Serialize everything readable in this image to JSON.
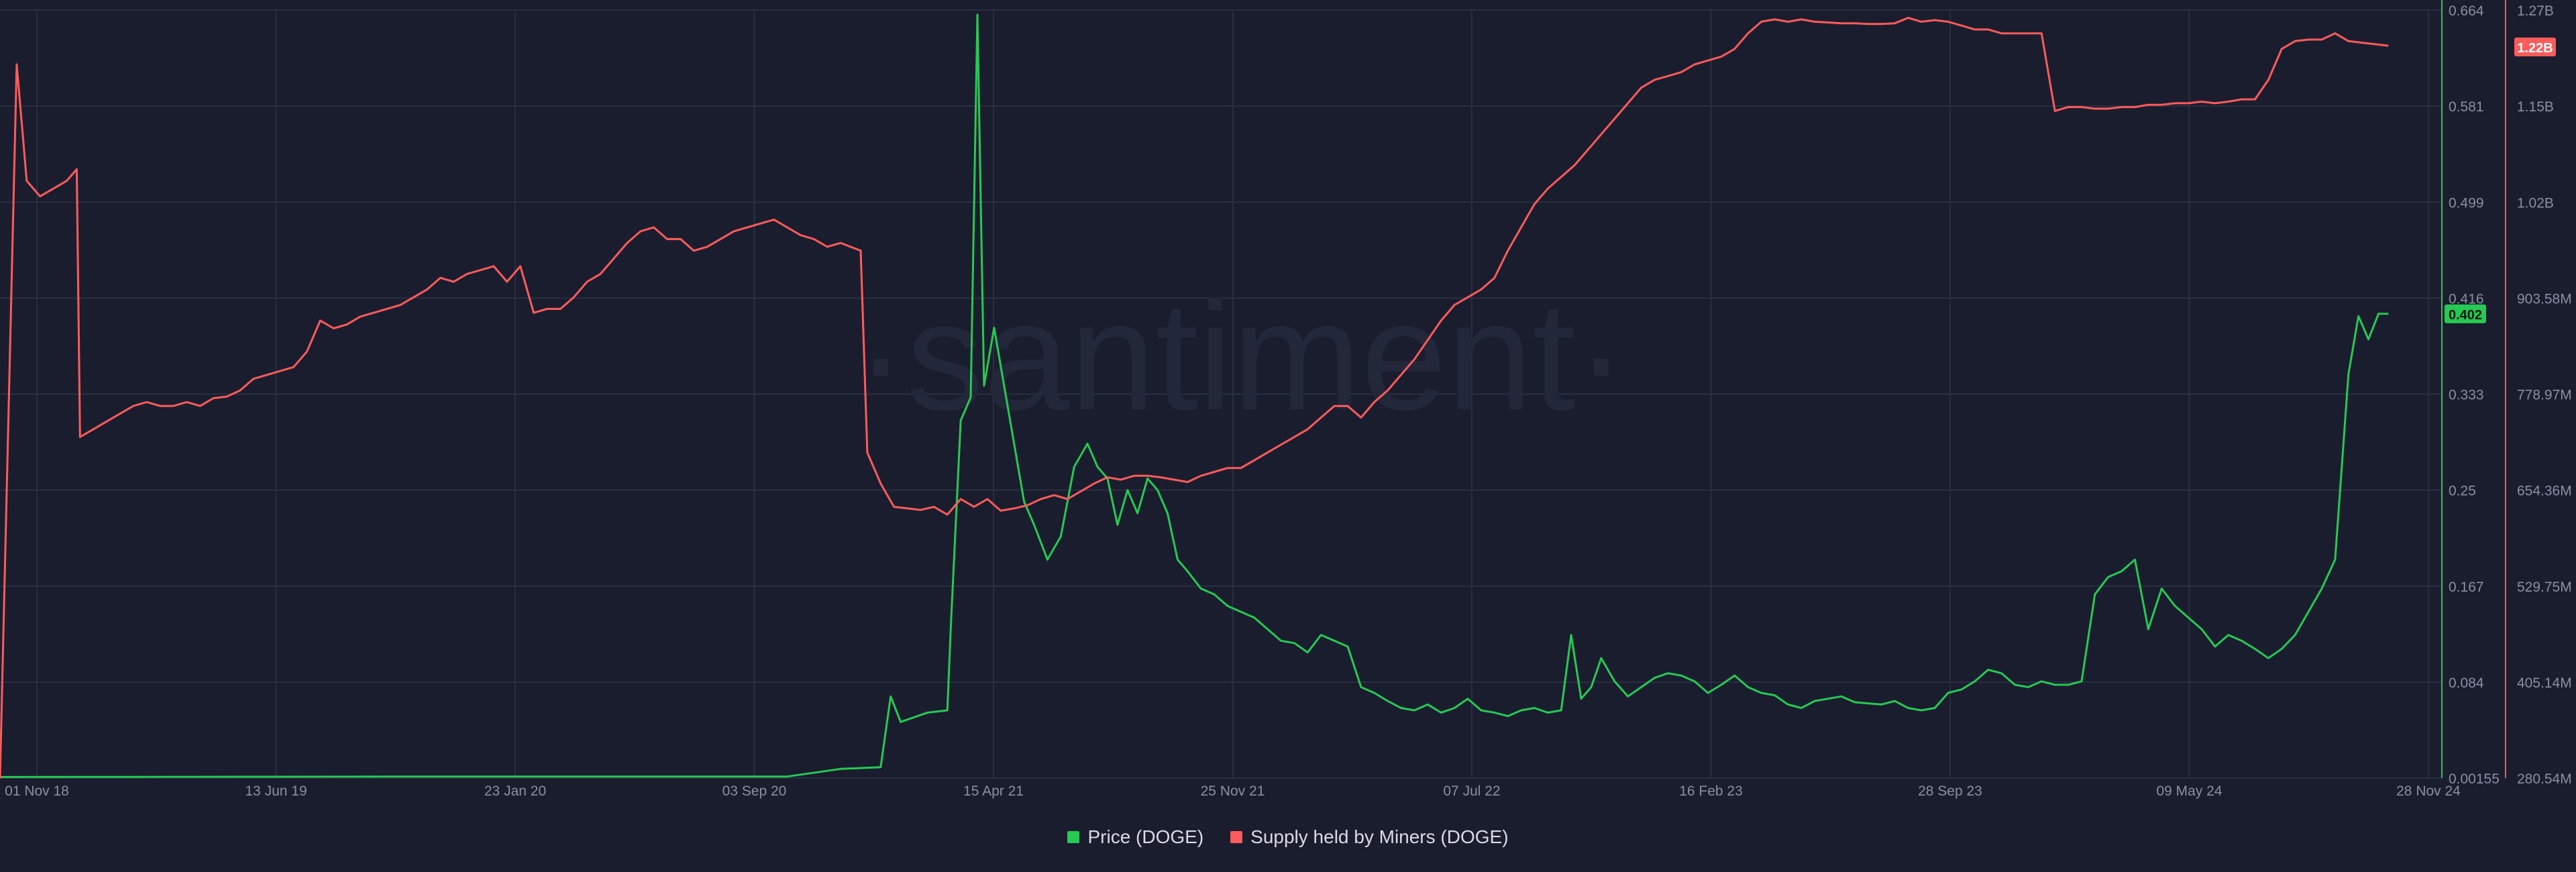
{
  "watermark": "santiment",
  "colors": {
    "background": "#1a1d2e",
    "grid": "#2a2e42",
    "axis_text": "#8a8fa3",
    "price": "#26c953",
    "supply": "#ff5b5b"
  },
  "chart_data": {
    "type": "line",
    "x_ticks": [
      "01 Nov 18",
      "13 Jun 19",
      "23 Jan 20",
      "03 Sep 20",
      "15 Apr 21",
      "25 Nov 21",
      "07 Jul 22",
      "16 Feb 23",
      "28 Sep 23",
      "09 May 24",
      "28 Nov 24"
    ],
    "price_axis": {
      "ticks": [
        "0.664",
        "0.581",
        "0.499",
        "0.416",
        "0.333",
        "0.25",
        "0.167",
        "0.084",
        "0.00155"
      ],
      "range": [
        0.00155,
        0.664
      ],
      "current_label": "0.402"
    },
    "supply_axis": {
      "ticks": [
        "1.27B",
        "1.15B",
        "1.02B",
        "903.58M",
        "778.97M",
        "654.36M",
        "529.75M",
        "405.14M",
        "280.54M"
      ],
      "range": [
        280.54,
        1270
      ],
      "current_label": "1.22B"
    },
    "series": [
      {
        "name": "Price (DOGE)",
        "color": "#26c953",
        "axis": "price",
        "points": [
          [
            0,
            0.0025
          ],
          [
            200,
            0.0026
          ],
          [
            400,
            0.0027
          ],
          [
            600,
            0.0028
          ],
          [
            800,
            0.0028
          ],
          [
            980,
            0.0029
          ],
          [
            1180,
            0.0029
          ],
          [
            1260,
            0.0095
          ],
          [
            1320,
            0.011
          ],
          [
            1335,
            0.072
          ],
          [
            1350,
            0.05
          ],
          [
            1390,
            0.058
          ],
          [
            1420,
            0.06
          ],
          [
            1425,
            0.13
          ],
          [
            1440,
            0.31
          ],
          [
            1455,
            0.33
          ],
          [
            1465,
            0.66
          ],
          [
            1475,
            0.34
          ],
          [
            1490,
            0.39
          ],
          [
            1505,
            0.34
          ],
          [
            1520,
            0.29
          ],
          [
            1535,
            0.24
          ],
          [
            1550,
            0.22
          ],
          [
            1570,
            0.19
          ],
          [
            1590,
            0.21
          ],
          [
            1610,
            0.27
          ],
          [
            1630,
            0.29
          ],
          [
            1645,
            0.27
          ],
          [
            1660,
            0.26
          ],
          [
            1675,
            0.22
          ],
          [
            1690,
            0.25
          ],
          [
            1705,
            0.23
          ],
          [
            1720,
            0.26
          ],
          [
            1735,
            0.25
          ],
          [
            1750,
            0.23
          ],
          [
            1765,
            0.19
          ],
          [
            1780,
            0.18
          ],
          [
            1800,
            0.165
          ],
          [
            1820,
            0.16
          ],
          [
            1840,
            0.15
          ],
          [
            1860,
            0.145
          ],
          [
            1880,
            0.14
          ],
          [
            1900,
            0.13
          ],
          [
            1920,
            0.12
          ],
          [
            1940,
            0.118
          ],
          [
            1960,
            0.11
          ],
          [
            1980,
            0.125
          ],
          [
            2000,
            0.12
          ],
          [
            2020,
            0.115
          ],
          [
            2040,
            0.08
          ],
          [
            2060,
            0.075
          ],
          [
            2080,
            0.068
          ],
          [
            2100,
            0.062
          ],
          [
            2120,
            0.06
          ],
          [
            2140,
            0.065
          ],
          [
            2160,
            0.058
          ],
          [
            2180,
            0.062
          ],
          [
            2200,
            0.07
          ],
          [
            2220,
            0.06
          ],
          [
            2240,
            0.058
          ],
          [
            2260,
            0.055
          ],
          [
            2280,
            0.06
          ],
          [
            2300,
            0.062
          ],
          [
            2320,
            0.058
          ],
          [
            2340,
            0.06
          ],
          [
            2355,
            0.125
          ],
          [
            2370,
            0.07
          ],
          [
            2385,
            0.08
          ],
          [
            2400,
            0.105
          ],
          [
            2420,
            0.085
          ],
          [
            2440,
            0.072
          ],
          [
            2460,
            0.08
          ],
          [
            2480,
            0.088
          ],
          [
            2500,
            0.092
          ],
          [
            2520,
            0.09
          ],
          [
            2540,
            0.085
          ],
          [
            2560,
            0.075
          ],
          [
            2580,
            0.082
          ],
          [
            2600,
            0.09
          ],
          [
            2620,
            0.08
          ],
          [
            2640,
            0.075
          ],
          [
            2660,
            0.073
          ],
          [
            2680,
            0.065
          ],
          [
            2700,
            0.062
          ],
          [
            2720,
            0.068
          ],
          [
            2740,
            0.07
          ],
          [
            2760,
            0.072
          ],
          [
            2780,
            0.067
          ],
          [
            2800,
            0.066
          ],
          [
            2820,
            0.065
          ],
          [
            2840,
            0.068
          ],
          [
            2860,
            0.062
          ],
          [
            2880,
            0.06
          ],
          [
            2900,
            0.062
          ],
          [
            2920,
            0.075
          ],
          [
            2940,
            0.078
          ],
          [
            2960,
            0.085
          ],
          [
            2980,
            0.095
          ],
          [
            3000,
            0.092
          ],
          [
            3020,
            0.082
          ],
          [
            3040,
            0.08
          ],
          [
            3060,
            0.085
          ],
          [
            3080,
            0.082
          ],
          [
            3100,
            0.082
          ],
          [
            3120,
            0.085
          ],
          [
            3140,
            0.16
          ],
          [
            3160,
            0.175
          ],
          [
            3180,
            0.18
          ],
          [
            3200,
            0.19
          ],
          [
            3220,
            0.13
          ],
          [
            3240,
            0.165
          ],
          [
            3260,
            0.15
          ],
          [
            3280,
            0.14
          ],
          [
            3300,
            0.13
          ],
          [
            3320,
            0.115
          ],
          [
            3340,
            0.125
          ],
          [
            3360,
            0.12
          ],
          [
            3380,
            0.113
          ],
          [
            3400,
            0.105
          ],
          [
            3420,
            0.113
          ],
          [
            3440,
            0.125
          ],
          [
            3460,
            0.145
          ],
          [
            3480,
            0.165
          ],
          [
            3500,
            0.19
          ],
          [
            3520,
            0.35
          ],
          [
            3535,
            0.4
          ],
          [
            3550,
            0.38
          ],
          [
            3565,
            0.402
          ],
          [
            3580,
            0.402
          ]
        ]
      },
      {
        "name": "Supply held by Miners (DOGE)",
        "color": "#ff5b5b",
        "axis": "supply",
        "points": [
          [
            0,
            280
          ],
          [
            25,
            1200
          ],
          [
            40,
            1050
          ],
          [
            60,
            1030
          ],
          [
            80,
            1040
          ],
          [
            100,
            1050
          ],
          [
            115,
            1065
          ],
          [
            120,
            720
          ],
          [
            140,
            730
          ],
          [
            160,
            740
          ],
          [
            180,
            750
          ],
          [
            200,
            760
          ],
          [
            220,
            765
          ],
          [
            240,
            760
          ],
          [
            260,
            760
          ],
          [
            280,
            765
          ],
          [
            300,
            760
          ],
          [
            320,
            770
          ],
          [
            340,
            772
          ],
          [
            360,
            780
          ],
          [
            380,
            795
          ],
          [
            400,
            800
          ],
          [
            420,
            805
          ],
          [
            440,
            810
          ],
          [
            460,
            830
          ],
          [
            480,
            870
          ],
          [
            500,
            860
          ],
          [
            520,
            865
          ],
          [
            540,
            875
          ],
          [
            560,
            880
          ],
          [
            580,
            885
          ],
          [
            600,
            890
          ],
          [
            620,
            900
          ],
          [
            640,
            910
          ],
          [
            660,
            925
          ],
          [
            680,
            920
          ],
          [
            700,
            930
          ],
          [
            720,
            935
          ],
          [
            740,
            940
          ],
          [
            760,
            920
          ],
          [
            780,
            940
          ],
          [
            800,
            880
          ],
          [
            820,
            885
          ],
          [
            840,
            885
          ],
          [
            860,
            900
          ],
          [
            880,
            920
          ],
          [
            900,
            930
          ],
          [
            920,
            950
          ],
          [
            940,
            970
          ],
          [
            960,
            985
          ],
          [
            980,
            990
          ],
          [
            1000,
            975
          ],
          [
            1020,
            975
          ],
          [
            1040,
            960
          ],
          [
            1060,
            965
          ],
          [
            1080,
            975
          ],
          [
            1100,
            985
          ],
          [
            1120,
            990
          ],
          [
            1140,
            995
          ],
          [
            1160,
            1000
          ],
          [
            1180,
            990
          ],
          [
            1200,
            980
          ],
          [
            1220,
            975
          ],
          [
            1240,
            965
          ],
          [
            1260,
            970
          ],
          [
            1290,
            960
          ],
          [
            1300,
            700
          ],
          [
            1320,
            660
          ],
          [
            1340,
            630
          ],
          [
            1360,
            628
          ],
          [
            1380,
            626
          ],
          [
            1400,
            630
          ],
          [
            1420,
            620
          ],
          [
            1440,
            640
          ],
          [
            1460,
            630
          ],
          [
            1480,
            640
          ],
          [
            1500,
            625
          ],
          [
            1520,
            628
          ],
          [
            1540,
            632
          ],
          [
            1560,
            640
          ],
          [
            1580,
            645
          ],
          [
            1600,
            640
          ],
          [
            1620,
            650
          ],
          [
            1640,
            660
          ],
          [
            1660,
            668
          ],
          [
            1680,
            665
          ],
          [
            1700,
            670
          ],
          [
            1720,
            670
          ],
          [
            1740,
            668
          ],
          [
            1760,
            665
          ],
          [
            1780,
            662
          ],
          [
            1800,
            670
          ],
          [
            1820,
            675
          ],
          [
            1840,
            680
          ],
          [
            1860,
            680
          ],
          [
            1880,
            690
          ],
          [
            1900,
            700
          ],
          [
            1920,
            710
          ],
          [
            1940,
            720
          ],
          [
            1960,
            730
          ],
          [
            1980,
            745
          ],
          [
            2000,
            760
          ],
          [
            2020,
            760
          ],
          [
            2040,
            745
          ],
          [
            2060,
            765
          ],
          [
            2080,
            780
          ],
          [
            2100,
            800
          ],
          [
            2120,
            820
          ],
          [
            2140,
            845
          ],
          [
            2160,
            870
          ],
          [
            2180,
            890
          ],
          [
            2200,
            900
          ],
          [
            2220,
            910
          ],
          [
            2240,
            925
          ],
          [
            2260,
            960
          ],
          [
            2280,
            990
          ],
          [
            2300,
            1020
          ],
          [
            2320,
            1040
          ],
          [
            2340,
            1055
          ],
          [
            2360,
            1070
          ],
          [
            2380,
            1090
          ],
          [
            2400,
            1110
          ],
          [
            2420,
            1130
          ],
          [
            2440,
            1150
          ],
          [
            2460,
            1170
          ],
          [
            2480,
            1180
          ],
          [
            2500,
            1185
          ],
          [
            2520,
            1190
          ],
          [
            2540,
            1200
          ],
          [
            2560,
            1205
          ],
          [
            2580,
            1210
          ],
          [
            2600,
            1220
          ],
          [
            2620,
            1240
          ],
          [
            2640,
            1255
          ],
          [
            2660,
            1258
          ],
          [
            2680,
            1255
          ],
          [
            2700,
            1258
          ],
          [
            2720,
            1255
          ],
          [
            2740,
            1254
          ],
          [
            2760,
            1253
          ],
          [
            2780,
            1253
          ],
          [
            2800,
            1252
          ],
          [
            2820,
            1252
          ],
          [
            2840,
            1253
          ],
          [
            2860,
            1260
          ],
          [
            2880,
            1255
          ],
          [
            2900,
            1257
          ],
          [
            2920,
            1255
          ],
          [
            2940,
            1250
          ],
          [
            2960,
            1245
          ],
          [
            2980,
            1245
          ],
          [
            3000,
            1240
          ],
          [
            3020,
            1240
          ],
          [
            3040,
            1240
          ],
          [
            3060,
            1240
          ],
          [
            3080,
            1140
          ],
          [
            3100,
            1145
          ],
          [
            3120,
            1145
          ],
          [
            3140,
            1143
          ],
          [
            3160,
            1143
          ],
          [
            3180,
            1145
          ],
          [
            3200,
            1145
          ],
          [
            3220,
            1148
          ],
          [
            3240,
            1148
          ],
          [
            3260,
            1150
          ],
          [
            3280,
            1150
          ],
          [
            3300,
            1152
          ],
          [
            3320,
            1150
          ],
          [
            3340,
            1152
          ],
          [
            3360,
            1155
          ],
          [
            3380,
            1155
          ],
          [
            3400,
            1180
          ],
          [
            3420,
            1220
          ],
          [
            3440,
            1230
          ],
          [
            3460,
            1232
          ],
          [
            3480,
            1232
          ],
          [
            3500,
            1240
          ],
          [
            3520,
            1230
          ],
          [
            3540,
            1228
          ],
          [
            3560,
            1226
          ],
          [
            3580,
            1224
          ]
        ]
      }
    ]
  },
  "legend": {
    "price_label": "Price (DOGE)",
    "supply_label": "Supply held by Miners (DOGE)"
  }
}
